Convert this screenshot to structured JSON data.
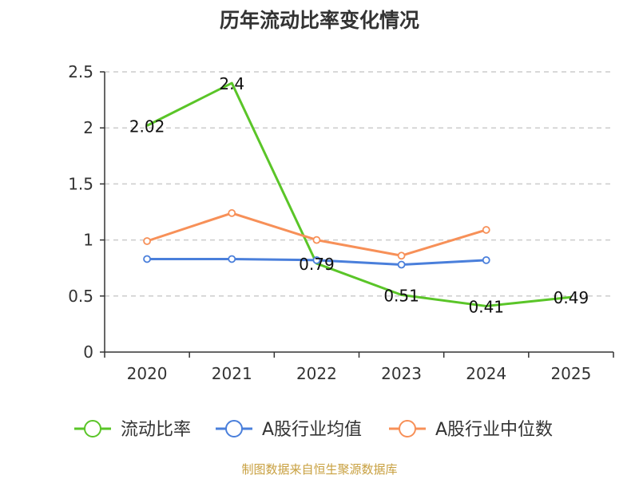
{
  "chart_data": {
    "type": "line",
    "title": "历年流动比率变化情况",
    "categories": [
      "2020",
      "2021",
      "2022",
      "2023",
      "2024",
      "2025"
    ],
    "y_ticks": [
      "0",
      "0.5",
      "1",
      "1.5",
      "2",
      "2.5"
    ],
    "ylim": [
      0,
      2.5
    ],
    "grid": true,
    "legend_position": "bottom",
    "series": [
      {
        "name": "流动比率",
        "color": "#5ac528",
        "values": [
          2.02,
          2.4,
          0.79,
          0.51,
          0.41,
          0.49
        ],
        "labels": [
          "2.02",
          "2.4",
          "0.79",
          "0.51",
          "0.41",
          "0.49"
        ]
      },
      {
        "name": "A股行业均值",
        "color": "#4a7fdb",
        "values": [
          0.83,
          0.83,
          0.82,
          0.78,
          0.82,
          null
        ]
      },
      {
        "name": "A股行业中位数",
        "color": "#f79058",
        "values": [
          0.99,
          1.24,
          1.0,
          0.86,
          1.09,
          null
        ]
      }
    ]
  },
  "footer": {
    "source": "制图数据来自恒生聚源数据库"
  }
}
